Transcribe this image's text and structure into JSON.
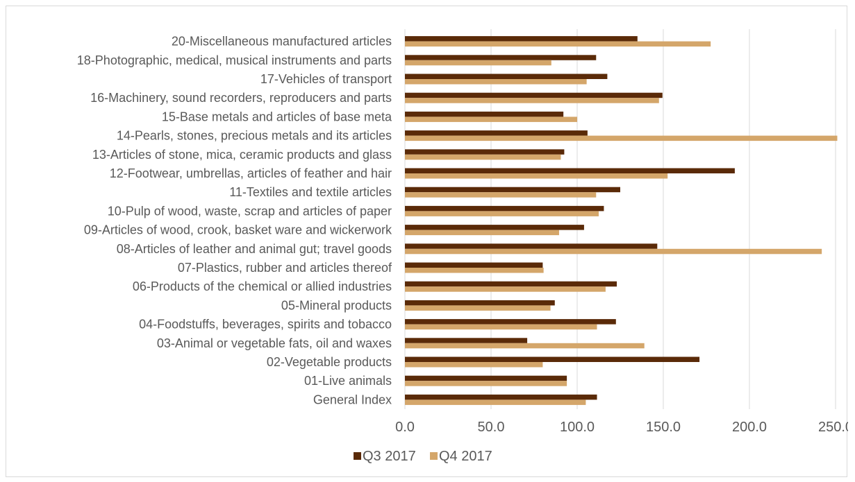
{
  "chart_data": {
    "type": "bar",
    "orientation": "horizontal",
    "categories": [
      "20-Miscellaneous manufactured articles",
      "18-Photographic, medical, musical instruments and parts",
      "17-Vehicles of transport",
      "16-Machinery, sound recorders, reproducers and parts",
      "15-Base metals and articles of base meta",
      "14-Pearls, stones, precious metals and its articles",
      "13-Articles of stone, mica, ceramic products and glass",
      "12-Footwear, umbrellas, articles of feather and hair",
      "11-Textiles and textile articles",
      "10-Pulp of wood, waste, scrap and articles of paper",
      "09-Articles of wood, crook, basket ware and wickerwork",
      "08-Articles of leather and animal gut; travel goods",
      "07-Plastics, rubber and articles thereof",
      "06-Products of the chemical or allied industries",
      "05-Mineral products",
      "04-Foodstuffs, beverages, spirits and tobacco",
      "03-Animal or vegetable fats, oil and waxes",
      "02-Vegetable products",
      "01-Live animals",
      "General Index"
    ],
    "series": [
      {
        "name": "Q3 2017",
        "color": "#5a2a08",
        "values": [
          135.0,
          111.0,
          117.5,
          149.5,
          92.0,
          106.0,
          92.5,
          191.5,
          125.0,
          115.5,
          104.0,
          146.5,
          80.0,
          123.0,
          87.0,
          122.5,
          71.0,
          171.0,
          94.0,
          111.5
        ]
      },
      {
        "name": "Q4 2017",
        "color": "#d4a66a",
        "values": [
          177.5,
          85.0,
          105.5,
          147.5,
          100.0,
          251.0,
          90.5,
          152.5,
          111.0,
          112.5,
          89.5,
          242.0,
          80.5,
          116.5,
          84.5,
          111.5,
          139.0,
          80.0,
          94.0,
          105.0
        ]
      }
    ],
    "xlim": [
      0,
      250
    ],
    "xticks": [
      "0.0",
      "50.0",
      "100.0",
      "150.0",
      "200.0",
      "250.0"
    ],
    "xtick_values": [
      0,
      50,
      100,
      150,
      200,
      250
    ],
    "grid": true,
    "legend_position": "bottom",
    "title": "",
    "xlabel": "",
    "ylabel": ""
  }
}
